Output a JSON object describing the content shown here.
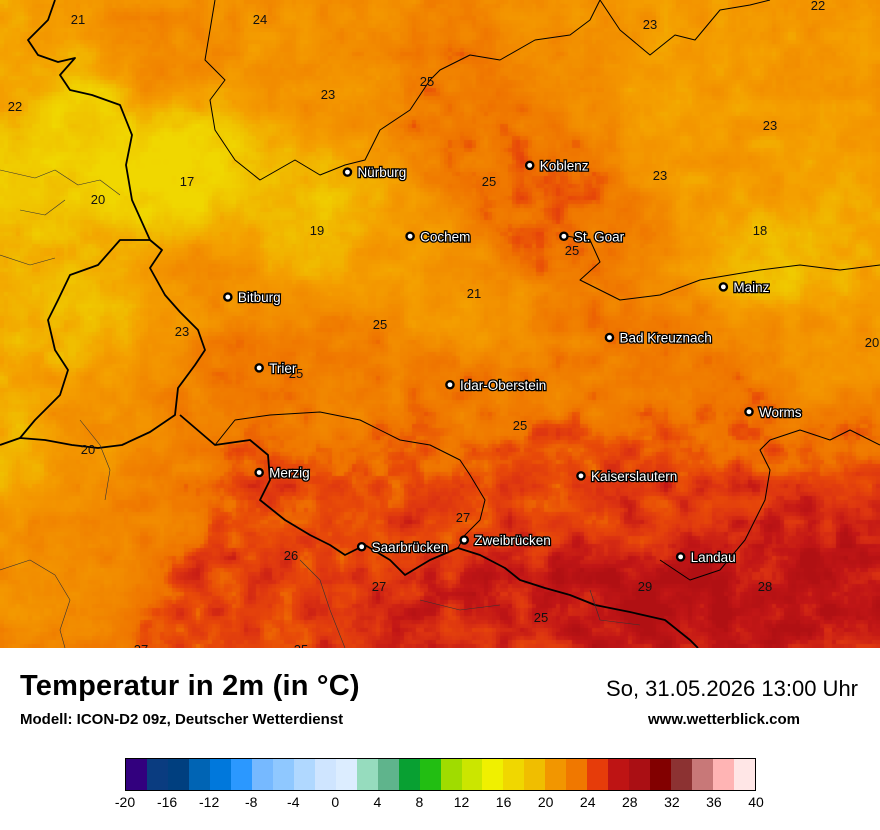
{
  "title": "Temperatur in 2m (in °C)",
  "model": "Modell: ICON-D2 09z, Deutscher Wetterdienst",
  "datetime": "So, 31.05.2026 13:00 Uhr",
  "site": "www.wetterblick.com",
  "cities": [
    {
      "name": "Nürburg",
      "lon": 6.95,
      "lat": 50.34
    },
    {
      "name": "Koblenz",
      "lon": 7.59,
      "lat": 50.36
    },
    {
      "name": "Cochem",
      "lon": 7.17,
      "lat": 50.15
    },
    {
      "name": "St. Goar",
      "lon": 7.71,
      "lat": 50.15
    },
    {
      "name": "Mainz",
      "lon": 8.27,
      "lat": 50.0
    },
    {
      "name": "Bitburg",
      "lon": 6.53,
      "lat": 49.97
    },
    {
      "name": "Bad Kreuznach",
      "lon": 7.87,
      "lat": 49.85
    },
    {
      "name": "Trier",
      "lon": 6.64,
      "lat": 49.76
    },
    {
      "name": "Idar-Oberstein",
      "lon": 7.31,
      "lat": 49.71
    },
    {
      "name": "Worms",
      "lon": 8.36,
      "lat": 49.63
    },
    {
      "name": "Merzig",
      "lon": 6.64,
      "lat": 49.45
    },
    {
      "name": "Kaiserslautern",
      "lon": 7.77,
      "lat": 49.44
    },
    {
      "name": "Saarbrücken",
      "lon": 7.0,
      "lat": 49.23
    },
    {
      "name": "Zweibrücken",
      "lon": 7.36,
      "lat": 49.25
    },
    {
      "name": "Landau",
      "lon": 8.12,
      "lat": 49.2
    }
  ],
  "isotherm_labels": [
    "21",
    "24",
    "22",
    "23",
    "22",
    "25",
    "23",
    "23",
    "17",
    "20",
    "25",
    "23",
    "19",
    "18",
    "25",
    "21",
    "20",
    "23",
    "25",
    "25",
    "25",
    "20",
    "27",
    "26",
    "27",
    "25",
    "29",
    "28",
    "27",
    "25"
  ],
  "legend": {
    "unit": "°C",
    "tick_labels": [
      "-20",
      "-16",
      "-12",
      "-8",
      "-4",
      "0",
      "4",
      "8",
      "12",
      "16",
      "20",
      "24",
      "28",
      "32",
      "36",
      "40"
    ],
    "colors": [
      "#32007e",
      "#0a3c80",
      "#003f7f",
      "#0064b4",
      "#0078dc",
      "#2b98ff",
      "#76b9ff",
      "#8fc8ff",
      "#b0d8ff",
      "#cfe5ff",
      "#dcedff",
      "#96dcbe",
      "#5fb48c",
      "#08a032",
      "#22be12",
      "#a0dc00",
      "#cbe600",
      "#f0f000",
      "#f0d700",
      "#f0be00",
      "#f29600",
      "#f07800",
      "#e63c0a",
      "#be1414",
      "#aa0f14",
      "#820000",
      "#8c3232",
      "#c87878",
      "#ffb4b4",
      "#ffe6e6"
    ],
    "colormap_stops": [
      {
        "t": 17,
        "c": "#f0d700"
      },
      {
        "t": 19,
        "c": "#f0be00"
      },
      {
        "t": 21,
        "c": "#f4a000"
      },
      {
        "t": 23,
        "c": "#f28c00"
      },
      {
        "t": 25,
        "c": "#ef7400"
      },
      {
        "t": 26,
        "c": "#e84a08"
      },
      {
        "t": 27,
        "c": "#dd3411"
      },
      {
        "t": 28,
        "c": "#c21616"
      },
      {
        "t": 29,
        "c": "#b11013"
      }
    ]
  },
  "field_seeds": [
    {
      "lon": 6.02,
      "lat": 50.45,
      "t": 17.5
    },
    {
      "lon": 6.35,
      "lat": 50.35,
      "t": 17.0
    },
    {
      "lon": 6.0,
      "lat": 49.95,
      "t": 19.5
    },
    {
      "lon": 5.78,
      "lat": 49.5,
      "t": 20.0
    },
    {
      "lon": 5.8,
      "lat": 50.7,
      "t": 21.0
    },
    {
      "lon": 6.3,
      "lat": 50.7,
      "t": 23.0
    },
    {
      "lon": 6.9,
      "lat": 50.65,
      "t": 22.5
    },
    {
      "lon": 7.3,
      "lat": 50.55,
      "t": 24.5
    },
    {
      "lon": 7.8,
      "lat": 50.7,
      "t": 22.5
    },
    {
      "lon": 8.1,
      "lat": 50.6,
      "t": 21.5
    },
    {
      "lon": 8.35,
      "lat": 50.4,
      "t": 21.5
    },
    {
      "lon": 8.45,
      "lat": 50.05,
      "t": 19.0
    },
    {
      "lon": 8.45,
      "lat": 49.85,
      "t": 22.5
    },
    {
      "lon": 6.85,
      "lat": 50.2,
      "t": 19.0
    },
    {
      "lon": 7.1,
      "lat": 50.05,
      "t": 21.5
    },
    {
      "lon": 7.35,
      "lat": 49.95,
      "t": 22.0
    },
    {
      "lon": 7.55,
      "lat": 50.35,
      "t": 25.0
    },
    {
      "lon": 7.65,
      "lat": 50.2,
      "t": 25.0
    },
    {
      "lon": 6.45,
      "lat": 50.0,
      "t": 22.5
    },
    {
      "lon": 6.6,
      "lat": 49.75,
      "t": 24.5
    },
    {
      "lon": 6.95,
      "lat": 49.8,
      "t": 24.0
    },
    {
      "lon": 7.3,
      "lat": 49.65,
      "t": 24.5
    },
    {
      "lon": 7.75,
      "lat": 49.75,
      "t": 24.0
    },
    {
      "lon": 8.15,
      "lat": 49.75,
      "t": 24.5
    },
    {
      "lon": 8.3,
      "lat": 49.6,
      "t": 25.0
    },
    {
      "lon": 6.05,
      "lat": 49.55,
      "t": 22.5
    },
    {
      "lon": 5.9,
      "lat": 49.3,
      "t": 23.0
    },
    {
      "lon": 6.3,
      "lat": 49.35,
      "t": 24.0
    },
    {
      "lon": 6.7,
      "lat": 49.35,
      "t": 26.3
    },
    {
      "lon": 7.0,
      "lat": 49.2,
      "t": 26.5
    },
    {
      "lon": 7.4,
      "lat": 49.3,
      "t": 26.5
    },
    {
      "lon": 7.7,
      "lat": 49.45,
      "t": 26.0
    },
    {
      "lon": 8.0,
      "lat": 49.35,
      "t": 26.8
    },
    {
      "lon": 8.25,
      "lat": 49.35,
      "t": 27.0
    },
    {
      "lon": 6.5,
      "lat": 49.12,
      "t": 26.5
    },
    {
      "lon": 7.1,
      "lat": 49.06,
      "t": 27.5
    },
    {
      "lon": 7.5,
      "lat": 49.08,
      "t": 27.5
    },
    {
      "lon": 7.85,
      "lat": 49.1,
      "t": 28.5
    },
    {
      "lon": 8.2,
      "lat": 49.1,
      "t": 28.6
    },
    {
      "lon": 8.45,
      "lat": 49.15,
      "t": 28.4
    }
  ]
}
